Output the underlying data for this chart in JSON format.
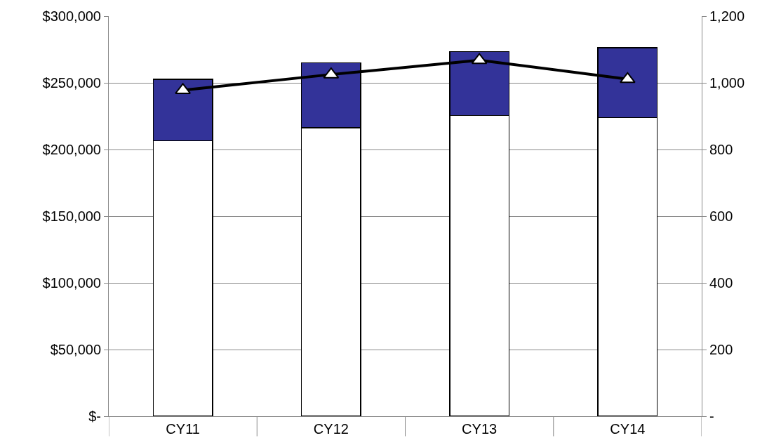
{
  "chart_data": {
    "type": "bar",
    "stacked": true,
    "categories": [
      "CY11",
      "CY12",
      "CY13",
      "CY14"
    ],
    "series": [
      {
        "color": "#ffffff",
        "values": [
          206500,
          216300,
          225500,
          224000
        ]
      },
      {
        "color": "#333399",
        "values": [
          46200,
          48800,
          47800,
          52400
        ]
      },
      {
        "type": "line",
        "axis": "y2",
        "color": "#000000",
        "marker": "triangle",
        "values": [
          978,
          1025,
          1068,
          1011
        ]
      }
    ],
    "ylim": [
      0,
      300000
    ],
    "yticks": [
      {
        "value": 0,
        "label": "$-"
      },
      {
        "value": 50000,
        "label": "$50,000"
      },
      {
        "value": 100000,
        "label": "$100,000"
      },
      {
        "value": 150000,
        "label": "$150,000"
      },
      {
        "value": 200000,
        "label": "$200,000"
      },
      {
        "value": 250000,
        "label": "$250,000"
      },
      {
        "value": 300000,
        "label": "$300,000"
      }
    ],
    "y2lim": [
      0,
      1200
    ],
    "y2ticks": [
      {
        "value": 0,
        "label": "-"
      },
      200,
      400,
      600,
      800,
      {
        "value": 1000,
        "label": "1,000"
      },
      {
        "value": 1200,
        "label": "1,200"
      }
    ],
    "grid": "y"
  }
}
